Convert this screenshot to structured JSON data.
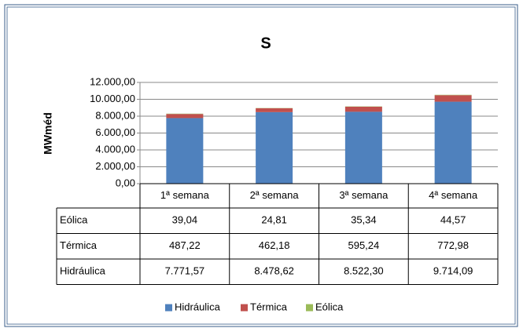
{
  "chart_data": {
    "type": "bar",
    "stacked": true,
    "title": "S",
    "y_label": "MWméd",
    "categories": [
      "1ª semana",
      "2ª semana",
      "3ª semana",
      "4ª semana"
    ],
    "series": [
      {
        "name": "Hidráulica",
        "color": "#4f81bd",
        "values": [
          7771.57,
          8478.62,
          8522.3,
          9714.09
        ],
        "value_labels": [
          "7.771,57",
          "8.478,62",
          "8.522,30",
          "9.714,09"
        ]
      },
      {
        "name": "Térmica",
        "color": "#c0504d",
        "values": [
          487.22,
          462.18,
          595.24,
          772.98
        ],
        "value_labels": [
          "487,22",
          "462,18",
          "595,24",
          "772,98"
        ]
      },
      {
        "name": "Eólica",
        "color": "#9bbb59",
        "values": [
          39.04,
          24.81,
          35.34,
          44.57
        ],
        "value_labels": [
          "39,04",
          "24,81",
          "35,34",
          "44,57"
        ]
      }
    ],
    "ylim": [
      0,
      12000
    ],
    "yticks": [
      {
        "value": 0,
        "label": "0,00"
      },
      {
        "value": 2000,
        "label": "2.000,00"
      },
      {
        "value": 4000,
        "label": "4.000,00"
      },
      {
        "value": 6000,
        "label": "6.000,00"
      },
      {
        "value": 8000,
        "label": "8.000,00"
      },
      {
        "value": 10000,
        "label": "10.000,00"
      },
      {
        "value": 12000,
        "label": "12.000,00"
      }
    ],
    "grid": true,
    "legend": "bottom"
  }
}
